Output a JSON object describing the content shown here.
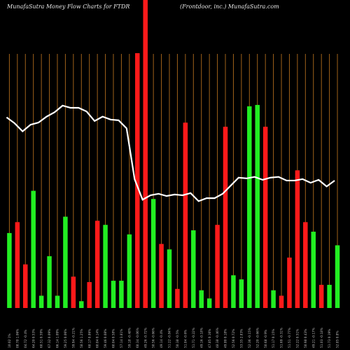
{
  "header": {
    "left": "MunafaSutra  Money Flow  Charts for FTDR",
    "right": "(Frontdoor,  inc.) MunafaSutra.com"
  },
  "colors": {
    "background": "#000000",
    "up": "#22ee22",
    "down": "#ff1a1a",
    "grid": "#a0621a",
    "line": "#ffffff"
  },
  "chart_data": {
    "type": "bar",
    "title": "MunafaSutra  Money Flow  Charts for FTDR",
    "subtitle": "(Frontdoor,  inc.) MunafaSutra.com",
    "grid": true,
    "categories": [
      "10.02 1%",
      "08.78 1.06%",
      "04.72 -0.4%",
      "64.20 0.53%",
      "60.51 0.59%",
      "67.32 0.09%",
      "66.14 1.09%",
      "59.25 0.06%",
      "59.94 -0.21%",
      "58.56 1.25%",
      "60.17 0.86%",
      "60.04 0.14%",
      "59.46 0.08%",
      "60.04 0.58%",
      "57.14 3.81%",
      "59.18 -0.48%",
      "60.34 -0.06%",
      "49.26 -0.72%",
      "50.56 -0.66%",
      "49.14 -0.4%",
      "51.22 -0.84%",
      "50.38 -0.5%",
      "51.04 -0.6%",
      "51.71 -0.22%",
      "49.16 -0.18%",
      "47.85 0.16%",
      "48.38 -0.46%",
      "49.80 0.18%",
      "52.56 0.72%",
      "53.35 2.83%",
      "52.36 -0.15%",
      "52.20 -0.66%",
      "50.68 -0.9%",
      "51.17 0.15%",
      "51.69 -0.31%",
      "51.51 -0.77%",
      "52.22 0.51%",
      "50.98 0.43%",
      "49.21 -0.17%",
      "51.03 -0.18%",
      "51.73 0.19%",
      "52.85 0.8%"
    ],
    "values": [
      55,
      63,
      32,
      86,
      9,
      38,
      9,
      67,
      23,
      5,
      19,
      64,
      61,
      20,
      20,
      54,
      187,
      226,
      80,
      47,
      43,
      14,
      136,
      57,
      13,
      7,
      61,
      133,
      24,
      21,
      148,
      149,
      133,
      13,
      9,
      37,
      101,
      63,
      56,
      17,
      17,
      46
    ],
    "colors": [
      "g",
      "r",
      "r",
      "g",
      "g",
      "g",
      "g",
      "g",
      "r",
      "g",
      "r",
      "r",
      "g",
      "g",
      "g",
      "g",
      "r",
      "r",
      "g",
      "r",
      "g",
      "r",
      "r",
      "g",
      "g",
      "g",
      "r",
      "r",
      "g",
      "g",
      "g",
      "g",
      "r",
      "g",
      "r",
      "r",
      "r",
      "r",
      "g",
      "r",
      "g",
      "g"
    ],
    "line_values": [
      60.7,
      59.9,
      58.8,
      59.7,
      60.0,
      60.8,
      61.4,
      62.3,
      62.0,
      62.0,
      61.5,
      60.2,
      60.8,
      60.4,
      60.3,
      59.2,
      52.3,
      49.5,
      50.1,
      50.3,
      50.0,
      50.2,
      50.1,
      50.4,
      49.3,
      49.7,
      49.7,
      50.3,
      51.4,
      52.5,
      52.4,
      52.6,
      52.2,
      52.5,
      52.6,
      52.1,
      52.1,
      52.3,
      51.8,
      52.2,
      51.3,
      52.1
    ]
  }
}
